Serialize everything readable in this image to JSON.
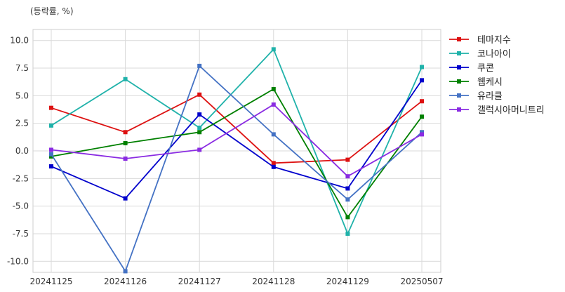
{
  "chart_data": {
    "type": "line",
    "unit_label": "(등락률, %)",
    "categories": [
      "20241125",
      "20241126",
      "20241127",
      "20241128",
      "20241129",
      "20250507"
    ],
    "ylim": [
      -11,
      11
    ],
    "yticks": [
      10.0,
      7.5,
      5.0,
      2.5,
      0.0,
      -2.5,
      -5.0,
      -7.5,
      -10.0
    ],
    "ytick_labels": [
      "10.0",
      "7.5",
      "5.0",
      "2.5",
      "0.0",
      "-2.5",
      "-5.0",
      "-7.5",
      "-10.0"
    ],
    "grid": true,
    "legend_position": "right-outside-top",
    "series": [
      {
        "name": "테마지수",
        "color": "#dd1111",
        "values": [
          3.9,
          1.7,
          5.1,
          -1.1,
          -0.8,
          4.5
        ]
      },
      {
        "name": "코나아이",
        "color": "#20b2aa",
        "values": [
          2.3,
          6.5,
          2.1,
          9.2,
          -7.5,
          7.6
        ]
      },
      {
        "name": "쿠콘",
        "color": "#0000cc",
        "values": [
          -1.4,
          -4.3,
          3.3,
          -1.45,
          -3.4,
          6.4
        ]
      },
      {
        "name": "웹케시",
        "color": "#008000",
        "values": [
          -0.5,
          0.7,
          1.7,
          5.6,
          -6.0,
          3.1
        ]
      },
      {
        "name": "유라클",
        "color": "#4472c4",
        "values": [
          -0.3,
          -10.9,
          7.7,
          1.5,
          -4.4,
          1.7
        ]
      },
      {
        "name": "갤럭시아머니트리",
        "color": "#8a2be2",
        "values": [
          0.1,
          -0.7,
          0.1,
          4.2,
          -2.3,
          1.5
        ]
      }
    ]
  }
}
